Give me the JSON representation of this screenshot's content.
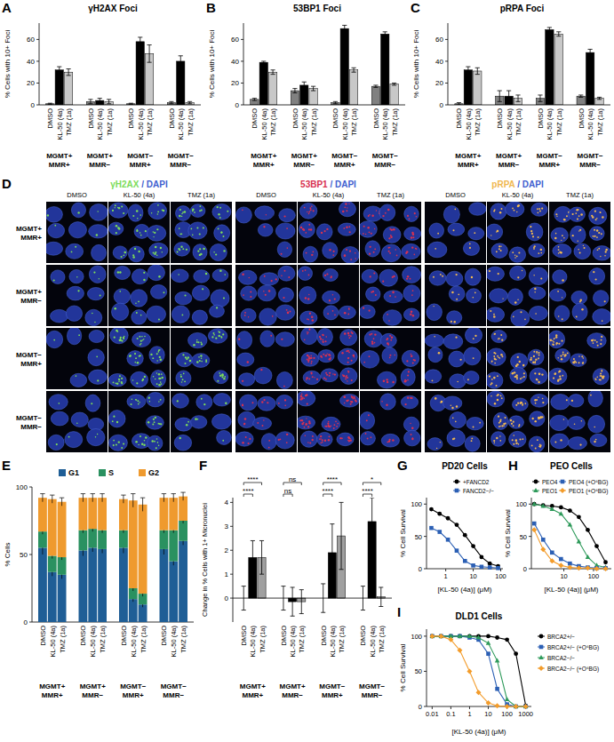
{
  "chart_data": [
    {
      "type": "bar",
      "label": "A",
      "title": "γH2AX Foci",
      "y_label": "% Cells with 10+ Foci",
      "categories": [
        "MGMT+ MMR+",
        "MGMT+ MMR−",
        "MGMT− MMR+",
        "MGMT− MMR−"
      ],
      "series": [
        {
          "name": "DMSO",
          "color": "#808080",
          "values": [
            1,
            3,
            1,
            2
          ],
          "errors": [
            0.5,
            2,
            0.5,
            1
          ]
        },
        {
          "name": "KL-50 (4a)",
          "color": "#000000",
          "values": [
            32,
            4,
            58,
            40
          ],
          "errors": [
            3,
            2,
            4,
            5
          ]
        },
        {
          "name": "TMZ (1a)",
          "color": "#c8c8c8",
          "values": [
            30,
            3,
            47,
            2
          ],
          "errors": [
            3,
            2,
            8,
            1
          ]
        }
      ],
      "ylim": [
        0,
        75
      ],
      "yticks": [
        0,
        20,
        40,
        60
      ]
    },
    {
      "type": "bar",
      "label": "B",
      "title": "53BP1 Foci",
      "y_label": "% Cells with 10+ Foci",
      "categories": [
        "MGMT+ MMR+",
        "MGMT+ MMR−",
        "MGMT− MMR+",
        "MGMT− MMR−"
      ],
      "series": [
        {
          "name": "DMSO",
          "color": "#808080",
          "values": [
            5,
            13,
            2,
            17
          ],
          "errors": [
            1,
            2,
            1,
            1
          ]
        },
        {
          "name": "KL-50 (4a)",
          "color": "#000000",
          "values": [
            39,
            18,
            70,
            65
          ],
          "errors": [
            1,
            3,
            3,
            2
          ]
        },
        {
          "name": "TMZ (1a)",
          "color": "#c8c8c8",
          "values": [
            30,
            15,
            32,
            19
          ],
          "errors": [
            2,
            2,
            2,
            1
          ]
        }
      ],
      "ylim": [
        0,
        75
      ],
      "yticks": [
        0,
        20,
        40,
        60
      ]
    },
    {
      "type": "bar",
      "label": "C",
      "title": "pRPA Foci",
      "y_label": "% Cells with 10+ Foci",
      "categories": [
        "MGMT+ MMR+",
        "MGMT+ MMR−",
        "MGMT− MMR+",
        "MGMT− MMR−"
      ],
      "series": [
        {
          "name": "DMSO",
          "color": "#808080",
          "values": [
            1,
            8,
            6,
            8
          ],
          "errors": [
            1,
            5,
            3,
            1
          ]
        },
        {
          "name": "KL-50 (4a)",
          "color": "#000000",
          "values": [
            32,
            8,
            69,
            48
          ],
          "errors": [
            3,
            5,
            2,
            3
          ]
        },
        {
          "name": "TMZ (1a)",
          "color": "#c8c8c8",
          "values": [
            31,
            6,
            65,
            6
          ],
          "errors": [
            3,
            3,
            2,
            1
          ]
        }
      ],
      "ylim": [
        0,
        75
      ],
      "yticks": [
        0,
        20,
        40,
        60
      ]
    },
    {
      "type": "image_grid",
      "label": "D",
      "columns": [
        "DMSO",
        "KL-50 (4a)",
        "TMZ (1a)"
      ],
      "rows": [
        "MGMT+ MMR+",
        "MGMT+ MMR−",
        "MGMT− MMR+",
        "MGMT− MMR−"
      ],
      "panels": [
        {
          "title": [
            "γH2AX",
            " / DAPI"
          ],
          "color": "#7ddc5a"
        },
        {
          "title": [
            "53BP1",
            " / DAPI"
          ],
          "color": "#d83250"
        },
        {
          "title": [
            "pRPA",
            " / DAPI"
          ],
          "color": "#f0b850"
        }
      ]
    },
    {
      "type": "bar",
      "label": "E",
      "y_label": "% Cells",
      "stacked": true,
      "legend": "top",
      "categories": [
        "DMSO",
        "KL-50 (4a)",
        "TMZ (1a)",
        "DMSO",
        "KL-50 (4a)",
        "TMZ (1a)",
        "DMSO",
        "KL-50 (4a)",
        "TMZ (1a)",
        "DMSO",
        "KL-50 (4a)",
        "TMZ (1a)"
      ],
      "groups": [
        "MGMT+ MMR+",
        "MGMT+ MMR−",
        "MGMT− MMR+",
        "MGMT− MMR−"
      ],
      "series": [
        {
          "name": "G1",
          "color": "#1f5e96",
          "values": [
            55,
            37,
            35,
            53,
            55,
            54,
            55,
            17,
            13,
            54,
            45,
            60
          ],
          "errors": [
            5,
            3,
            3,
            4,
            3,
            3,
            4,
            2,
            2,
            4,
            3,
            3
          ]
        },
        {
          "name": "S",
          "color": "#2a9160",
          "values": [
            12,
            12,
            13,
            15,
            14,
            14,
            13,
            8,
            8,
            14,
            23,
            15
          ],
          "errors": [
            2,
            2,
            2,
            2,
            2,
            2,
            2,
            2,
            2,
            2,
            2,
            2
          ]
        },
        {
          "name": "G2",
          "color": "#ef9a2e",
          "values": [
            25,
            42,
            41,
            24,
            23,
            24,
            23,
            65,
            66,
            24,
            24,
            18
          ],
          "errors": [
            3,
            3,
            3,
            3,
            3,
            3,
            3,
            5,
            5,
            3,
            3,
            3
          ]
        }
      ],
      "ylim": [
        0,
        100
      ],
      "yticks": [
        0,
        50,
        100
      ]
    },
    {
      "type": "bar",
      "label": "F",
      "y_label": "Change in % Cells with 1+ Micronuclei",
      "categories": [
        "MGMT+ MMR+",
        "MGMT+ MMR−",
        "MGMT− MMR+",
        "MGMT− MMR−"
      ],
      "series": [
        {
          "name": "DMSO",
          "color": "#ffffff",
          "values": [
            0,
            0,
            0,
            0
          ],
          "errors": [
            0.5,
            0.5,
            0.6,
            0.5
          ]
        },
        {
          "name": "KL-50 (4a)",
          "color": "#000000",
          "values": [
            1.7,
            -0.15,
            1.9,
            3.2
          ],
          "errors": [
            0.7,
            0.6,
            1.2,
            1.0
          ]
        },
        {
          "name": "TMZ (1a)",
          "color": "#a0a0a0",
          "values": [
            1.7,
            -0.15,
            2.6,
            0.05
          ],
          "errors": [
            0.7,
            0.5,
            1.4,
            0.4
          ]
        }
      ],
      "annotations": [
        "****",
        "****",
        "ns",
        "ns",
        "****",
        "****",
        "****",
        "*"
      ],
      "ylim": [
        -1,
        4.2
      ],
      "yticks": [
        0,
        1,
        2,
        3,
        4
      ]
    },
    {
      "type": "line",
      "label": "G",
      "title": "PD20 Cells",
      "y_label": "% Cell Survival",
      "x_label": "[KL-50 (4a)] (μM)",
      "log": "x",
      "legend": "top",
      "x": [
        0.3,
        0.6,
        1.2,
        2.5,
        5,
        10,
        20,
        40,
        80
      ],
      "series": [
        {
          "name": "+FANCD2",
          "color": "#000000",
          "marker": "circle",
          "line_style": "solid",
          "values": [
            92,
            85,
            78,
            68,
            52,
            35,
            18,
            8,
            4
          ]
        },
        {
          "name": "FANCD2−/−",
          "color": "#2b5fb4",
          "marker": "square",
          "line_style": "solid",
          "values": [
            63,
            57,
            45,
            28,
            12,
            5,
            3,
            2,
            1
          ]
        }
      ],
      "xlim": [
        0.2,
        120
      ],
      "xticks": [
        1,
        10,
        100
      ],
      "ylim": [
        0,
        110
      ],
      "yticks": [
        0,
        50,
        100
      ]
    },
    {
      "type": "line",
      "label": "H",
      "title": "PEO Cells",
      "y_label": "% Cell Survival",
      "x_label": "[KL-50 (4a)] (μM)",
      "log": "x",
      "legend": "top",
      "x": [
        1,
        2,
        4,
        8,
        16,
        32,
        64,
        128,
        256
      ],
      "series": [
        {
          "name": "PEO4",
          "color": "#000000",
          "marker": "circle",
          "line_style": "solid",
          "values": [
            100,
            98,
            97,
            95,
            90,
            80,
            60,
            35,
            10
          ]
        },
        {
          "name": "PEO1",
          "color": "#2e9a5a",
          "marker": "triangle",
          "line_style": "solid",
          "values": [
            100,
            97,
            92,
            85,
            68,
            42,
            18,
            5,
            2
          ]
        },
        {
          "name": "PEO4 (+O⁶BG)",
          "color": "#2b5fb4",
          "marker": "square",
          "line_style": "solid",
          "values": [
            70,
            45,
            25,
            15,
            8,
            4,
            2,
            1,
            1
          ]
        },
        {
          "name": "PEO1 (+O⁶BG)",
          "color": "#f39c2b",
          "marker": "diamond",
          "line_style": "solid",
          "values": [
            60,
            30,
            12,
            5,
            2,
            1,
            1,
            0,
            0
          ]
        }
      ],
      "xlim": [
        0.8,
        400
      ],
      "xticks": [
        10,
        100
      ],
      "ylim": [
        0,
        110
      ],
      "yticks": [
        0,
        50,
        100
      ]
    },
    {
      "type": "line",
      "label": "I",
      "title": "DLD1 Cells",
      "y_label": "% Cell Survival",
      "x_label": "[KL-50 (4a)] (μM)",
      "log": "x",
      "legend": "right",
      "x": [
        0.01,
        0.03,
        0.1,
        0.3,
        1,
        3,
        10,
        30,
        100,
        300,
        1000
      ],
      "series": [
        {
          "name": "BRCA2+/−",
          "color": "#000000",
          "marker": "circle",
          "line_style": "solid",
          "values": [
            100,
            100,
            100,
            100,
            100,
            100,
            100,
            98,
            95,
            75,
            1
          ]
        },
        {
          "name": "BRCA2+/− (+O⁶BG)",
          "color": "#2b5fb4",
          "marker": "square",
          "line_style": "solid",
          "values": [
            100,
            100,
            100,
            100,
            98,
            95,
            75,
            25,
            3,
            0,
            0
          ]
        },
        {
          "name": "BRCA2−/−",
          "color": "#2e9a5a",
          "marker": "triangle",
          "line_style": "solid",
          "values": [
            100,
            100,
            100,
            100,
            100,
            98,
            90,
            65,
            10,
            0,
            0
          ]
        },
        {
          "name": "BRCA2−/− (+O⁶BG)",
          "color": "#f39c2b",
          "marker": "diamond",
          "line_style": "solid",
          "values": [
            100,
            100,
            95,
            80,
            50,
            20,
            5,
            1,
            0,
            0,
            0
          ]
        }
      ],
      "xlim": [
        0.005,
        2000
      ],
      "xticks": [
        0.01,
        0.1,
        1,
        10,
        100,
        1000
      ],
      "ylim": [
        0,
        110
      ],
      "yticks": [
        0,
        50,
        100
      ]
    }
  ]
}
